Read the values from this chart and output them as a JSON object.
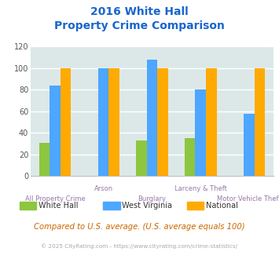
{
  "title_line1": "2016 White Hall",
  "title_line2": "Property Crime Comparison",
  "categories": [
    "All Property Crime",
    "Arson",
    "Burglary",
    "Larceny & Theft",
    "Motor Vehicle Theft"
  ],
  "series": {
    "White Hall": [
      31,
      0,
      33,
      35,
      0
    ],
    "West Virginia": [
      84,
      100,
      108,
      80,
      58
    ],
    "National": [
      100,
      100,
      100,
      100,
      100
    ]
  },
  "colors": {
    "White Hall": "#8dc63f",
    "West Virginia": "#4da6ff",
    "National": "#ffaa00"
  },
  "ylim": [
    0,
    120
  ],
  "yticks": [
    0,
    20,
    40,
    60,
    80,
    100,
    120
  ],
  "stagger": [
    0,
    1,
    0,
    1,
    0
  ],
  "background_color": "#dce8e8",
  "title_color": "#1a66cc",
  "axis_label_color": "#9977aa",
  "footer_text": "Compared to U.S. average. (U.S. average equals 100)",
  "copyright_text": "© 2025 CityRating.com - https://www.cityrating.com/crime-statistics/",
  "footer_color": "#cc6600",
  "copyright_color": "#aaaaaa",
  "legend_labels": [
    "White Hall",
    "West Virginia",
    "National"
  ]
}
